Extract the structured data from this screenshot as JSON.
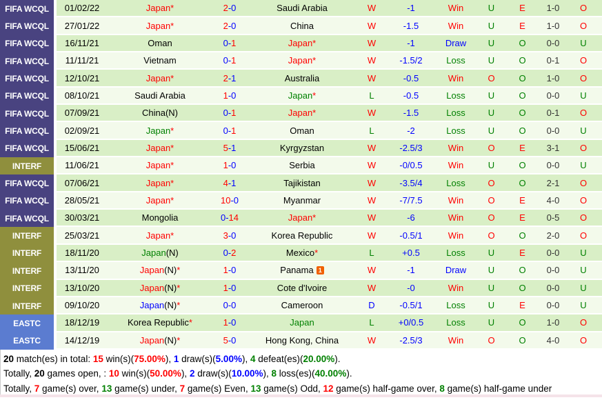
{
  "colors": {
    "result_win": "#ff0000",
    "result_loss": "#008000",
    "result_draw": "#0000ff",
    "handicap_blue": "#0000ff",
    "text_black": "#000000",
    "ht_score": "#333333",
    "row_green": "#d9efc6",
    "row_light": "#f3faeb",
    "badge_fifa": "#494380",
    "badge_interf": "#8f8f3d",
    "badge_eastc": "#5b7cd0",
    "card_orange": "#f06000",
    "divider_pink": "#f5e3e9"
  },
  "table": {
    "tokens": {
      "neutral": "(N)",
      "star": "*",
      "dash": "-",
      "card": "1"
    },
    "rows": [
      {
        "league": "FIFA WCQL",
        "league_key": "fifa",
        "date": "01/02/22",
        "home": {
          "name": "Japan",
          "color": "red",
          "star": true
        },
        "score": {
          "h": "2",
          "a": "0",
          "hc": "red",
          "ac": "blue"
        },
        "away": {
          "name": "Saudi Arabia",
          "color": "black"
        },
        "res": {
          "t": "W",
          "c": "red"
        },
        "handicap": "-1",
        "outcome": {
          "t": "Win",
          "c": "red"
        },
        "ou1": {
          "t": "U",
          "c": "green"
        },
        "eo": {
          "t": "E",
          "c": "red"
        },
        "ht": "1-0",
        "ou2": {
          "t": "O",
          "c": "red"
        }
      },
      {
        "league": "FIFA WCQL",
        "league_key": "fifa",
        "date": "27/01/22",
        "home": {
          "name": "Japan",
          "color": "red",
          "star": true
        },
        "score": {
          "h": "2",
          "a": "0",
          "hc": "red",
          "ac": "blue"
        },
        "away": {
          "name": "China",
          "color": "black"
        },
        "res": {
          "t": "W",
          "c": "red"
        },
        "handicap": "-1.5",
        "outcome": {
          "t": "Win",
          "c": "red"
        },
        "ou1": {
          "t": "U",
          "c": "green"
        },
        "eo": {
          "t": "E",
          "c": "red"
        },
        "ht": "1-0",
        "ou2": {
          "t": "O",
          "c": "red"
        }
      },
      {
        "league": "FIFA WCQL",
        "league_key": "fifa",
        "date": "16/11/21",
        "home": {
          "name": "Oman",
          "color": "black"
        },
        "score": {
          "h": "0",
          "a": "1",
          "hc": "blue",
          "ac": "red"
        },
        "away": {
          "name": "Japan",
          "color": "red",
          "star": true
        },
        "res": {
          "t": "W",
          "c": "red"
        },
        "handicap": "-1",
        "outcome": {
          "t": "Draw",
          "c": "blue"
        },
        "ou1": {
          "t": "U",
          "c": "green"
        },
        "eo": {
          "t": "O",
          "c": "green"
        },
        "ht": "0-0",
        "ou2": {
          "t": "U",
          "c": "green"
        }
      },
      {
        "league": "FIFA WCQL",
        "league_key": "fifa",
        "date": "11/11/21",
        "home": {
          "name": "Vietnam",
          "color": "black"
        },
        "score": {
          "h": "0",
          "a": "1",
          "hc": "blue",
          "ac": "red"
        },
        "away": {
          "name": "Japan",
          "color": "red",
          "star": true
        },
        "res": {
          "t": "W",
          "c": "red"
        },
        "handicap": "-1.5/2",
        "outcome": {
          "t": "Loss",
          "c": "green"
        },
        "ou1": {
          "t": "U",
          "c": "green"
        },
        "eo": {
          "t": "O",
          "c": "green"
        },
        "ht": "0-1",
        "ou2": {
          "t": "O",
          "c": "red"
        }
      },
      {
        "league": "FIFA WCQL",
        "league_key": "fifa",
        "date": "12/10/21",
        "home": {
          "name": "Japan",
          "color": "red",
          "star": true
        },
        "score": {
          "h": "2",
          "a": "1",
          "hc": "red",
          "ac": "blue"
        },
        "away": {
          "name": "Australia",
          "color": "black"
        },
        "res": {
          "t": "W",
          "c": "red"
        },
        "handicap": "-0.5",
        "outcome": {
          "t": "Win",
          "c": "red"
        },
        "ou1": {
          "t": "O",
          "c": "red"
        },
        "eo": {
          "t": "O",
          "c": "green"
        },
        "ht": "1-0",
        "ou2": {
          "t": "O",
          "c": "red"
        }
      },
      {
        "league": "FIFA WCQL",
        "league_key": "fifa",
        "date": "08/10/21",
        "home": {
          "name": "Saudi Arabia",
          "color": "black"
        },
        "score": {
          "h": "1",
          "a": "0",
          "hc": "red",
          "ac": "blue"
        },
        "away": {
          "name": "Japan",
          "color": "green",
          "star": true
        },
        "res": {
          "t": "L",
          "c": "green"
        },
        "handicap": "-0.5",
        "outcome": {
          "t": "Loss",
          "c": "green"
        },
        "ou1": {
          "t": "U",
          "c": "green"
        },
        "eo": {
          "t": "O",
          "c": "green"
        },
        "ht": "0-0",
        "ou2": {
          "t": "U",
          "c": "green"
        }
      },
      {
        "league": "FIFA WCQL",
        "league_key": "fifa",
        "date": "07/09/21",
        "home": {
          "name": "China",
          "color": "black",
          "n": true
        },
        "score": {
          "h": "0",
          "a": "1",
          "hc": "blue",
          "ac": "red"
        },
        "away": {
          "name": "Japan",
          "color": "red",
          "star": true
        },
        "res": {
          "t": "W",
          "c": "red"
        },
        "handicap": "-1.5",
        "outcome": {
          "t": "Loss",
          "c": "green"
        },
        "ou1": {
          "t": "U",
          "c": "green"
        },
        "eo": {
          "t": "O",
          "c": "green"
        },
        "ht": "0-1",
        "ou2": {
          "t": "O",
          "c": "red"
        }
      },
      {
        "league": "FIFA WCQL",
        "league_key": "fifa",
        "date": "02/09/21",
        "home": {
          "name": "Japan",
          "color": "green",
          "star": true
        },
        "score": {
          "h": "0",
          "a": "1",
          "hc": "blue",
          "ac": "red"
        },
        "away": {
          "name": "Oman",
          "color": "black"
        },
        "res": {
          "t": "L",
          "c": "green"
        },
        "handicap": "-2",
        "outcome": {
          "t": "Loss",
          "c": "green"
        },
        "ou1": {
          "t": "U",
          "c": "green"
        },
        "eo": {
          "t": "O",
          "c": "green"
        },
        "ht": "0-0",
        "ou2": {
          "t": "U",
          "c": "green"
        }
      },
      {
        "league": "FIFA WCQL",
        "league_key": "fifa",
        "date": "15/06/21",
        "home": {
          "name": "Japan",
          "color": "red",
          "star": true
        },
        "score": {
          "h": "5",
          "a": "1",
          "hc": "red",
          "ac": "blue"
        },
        "away": {
          "name": "Kyrgyzstan",
          "color": "black"
        },
        "res": {
          "t": "W",
          "c": "red"
        },
        "handicap": "-2.5/3",
        "outcome": {
          "t": "Win",
          "c": "red"
        },
        "ou1": {
          "t": "O",
          "c": "red"
        },
        "eo": {
          "t": "E",
          "c": "red"
        },
        "ht": "3-1",
        "ou2": {
          "t": "O",
          "c": "red"
        }
      },
      {
        "league": "INTERF",
        "league_key": "interf",
        "date": "11/06/21",
        "home": {
          "name": "Japan",
          "color": "red",
          "star": true
        },
        "score": {
          "h": "1",
          "a": "0",
          "hc": "red",
          "ac": "blue"
        },
        "away": {
          "name": "Serbia",
          "color": "black"
        },
        "res": {
          "t": "W",
          "c": "red"
        },
        "handicap": "-0/0.5",
        "outcome": {
          "t": "Win",
          "c": "red"
        },
        "ou1": {
          "t": "U",
          "c": "green"
        },
        "eo": {
          "t": "O",
          "c": "green"
        },
        "ht": "0-0",
        "ou2": {
          "t": "U",
          "c": "green"
        }
      },
      {
        "league": "FIFA WCQL",
        "league_key": "fifa",
        "date": "07/06/21",
        "home": {
          "name": "Japan",
          "color": "red",
          "star": true
        },
        "score": {
          "h": "4",
          "a": "1",
          "hc": "red",
          "ac": "blue"
        },
        "away": {
          "name": "Tajikistan",
          "color": "black"
        },
        "res": {
          "t": "W",
          "c": "red"
        },
        "handicap": "-3.5/4",
        "outcome": {
          "t": "Loss",
          "c": "green"
        },
        "ou1": {
          "t": "O",
          "c": "red"
        },
        "eo": {
          "t": "O",
          "c": "green"
        },
        "ht": "2-1",
        "ou2": {
          "t": "O",
          "c": "red"
        }
      },
      {
        "league": "FIFA WCQL",
        "league_key": "fifa",
        "date": "28/05/21",
        "home": {
          "name": "Japan",
          "color": "red",
          "star": true
        },
        "score": {
          "h": "10",
          "a": "0",
          "hc": "red",
          "ac": "blue"
        },
        "away": {
          "name": "Myanmar",
          "color": "black"
        },
        "res": {
          "t": "W",
          "c": "red"
        },
        "handicap": "-7/7.5",
        "outcome": {
          "t": "Win",
          "c": "red"
        },
        "ou1": {
          "t": "O",
          "c": "red"
        },
        "eo": {
          "t": "E",
          "c": "red"
        },
        "ht": "4-0",
        "ou2": {
          "t": "O",
          "c": "red"
        }
      },
      {
        "league": "FIFA WCQL",
        "league_key": "fifa",
        "date": "30/03/21",
        "home": {
          "name": "Mongolia",
          "color": "black"
        },
        "score": {
          "h": "0",
          "a": "14",
          "hc": "blue",
          "ac": "red"
        },
        "away": {
          "name": "Japan",
          "color": "red",
          "star": true
        },
        "res": {
          "t": "W",
          "c": "red"
        },
        "handicap": "-6",
        "outcome": {
          "t": "Win",
          "c": "red"
        },
        "ou1": {
          "t": "O",
          "c": "red"
        },
        "eo": {
          "t": "E",
          "c": "red"
        },
        "ht": "0-5",
        "ou2": {
          "t": "O",
          "c": "red"
        }
      },
      {
        "league": "INTERF",
        "league_key": "interf",
        "date": "25/03/21",
        "home": {
          "name": "Japan",
          "color": "red",
          "star": true
        },
        "score": {
          "h": "3",
          "a": "0",
          "hc": "red",
          "ac": "blue"
        },
        "away": {
          "name": "Korea Republic",
          "color": "black"
        },
        "res": {
          "t": "W",
          "c": "red"
        },
        "handicap": "-0.5/1",
        "outcome": {
          "t": "Win",
          "c": "red"
        },
        "ou1": {
          "t": "O",
          "c": "red"
        },
        "eo": {
          "t": "O",
          "c": "green"
        },
        "ht": "2-0",
        "ou2": {
          "t": "O",
          "c": "red"
        }
      },
      {
        "league": "INTERF",
        "league_key": "interf",
        "date": "18/11/20",
        "home": {
          "name": "Japan",
          "color": "green",
          "n": true
        },
        "score": {
          "h": "0",
          "a": "2",
          "hc": "blue",
          "ac": "red"
        },
        "away": {
          "name": "Mexico",
          "color": "black",
          "star": true
        },
        "res": {
          "t": "L",
          "c": "green"
        },
        "handicap": "+0.5",
        "outcome": {
          "t": "Loss",
          "c": "green"
        },
        "ou1": {
          "t": "U",
          "c": "green"
        },
        "eo": {
          "t": "E",
          "c": "red"
        },
        "ht": "0-0",
        "ou2": {
          "t": "U",
          "c": "green"
        }
      },
      {
        "league": "INTERF",
        "league_key": "interf",
        "date": "13/11/20",
        "home": {
          "name": "Japan",
          "color": "red",
          "n": true,
          "star": true
        },
        "score": {
          "h": "1",
          "a": "0",
          "hc": "red",
          "ac": "blue"
        },
        "away": {
          "name": "Panama",
          "color": "black",
          "card": true
        },
        "res": {
          "t": "W",
          "c": "red"
        },
        "handicap": "-1",
        "outcome": {
          "t": "Draw",
          "c": "blue"
        },
        "ou1": {
          "t": "U",
          "c": "green"
        },
        "eo": {
          "t": "O",
          "c": "green"
        },
        "ht": "0-0",
        "ou2": {
          "t": "U",
          "c": "green"
        }
      },
      {
        "league": "INTERF",
        "league_key": "interf",
        "date": "13/10/20",
        "home": {
          "name": "Japan",
          "color": "red",
          "n": true,
          "star": true
        },
        "score": {
          "h": "1",
          "a": "0",
          "hc": "red",
          "ac": "blue"
        },
        "away": {
          "name": "Cote d'Ivoire",
          "color": "black"
        },
        "res": {
          "t": "W",
          "c": "red"
        },
        "handicap": "-0",
        "outcome": {
          "t": "Win",
          "c": "red"
        },
        "ou1": {
          "t": "U",
          "c": "green"
        },
        "eo": {
          "t": "O",
          "c": "green"
        },
        "ht": "0-0",
        "ou2": {
          "t": "U",
          "c": "green"
        }
      },
      {
        "league": "INTERF",
        "league_key": "interf",
        "date": "09/10/20",
        "home": {
          "name": "Japan",
          "color": "blue",
          "n": true,
          "star": true
        },
        "score": {
          "h": "0",
          "a": "0",
          "hc": "blue",
          "ac": "blue"
        },
        "away": {
          "name": "Cameroon",
          "color": "black"
        },
        "res": {
          "t": "D",
          "c": "blue"
        },
        "handicap": "-0.5/1",
        "outcome": {
          "t": "Loss",
          "c": "green"
        },
        "ou1": {
          "t": "U",
          "c": "green"
        },
        "eo": {
          "t": "E",
          "c": "red"
        },
        "ht": "0-0",
        "ou2": {
          "t": "U",
          "c": "green"
        }
      },
      {
        "league": "EASTC",
        "league_key": "eastc",
        "date": "18/12/19",
        "home": {
          "name": "Korea Republic",
          "color": "black",
          "star": true
        },
        "score": {
          "h": "1",
          "a": "0",
          "hc": "red",
          "ac": "blue"
        },
        "away": {
          "name": "Japan",
          "color": "green"
        },
        "res": {
          "t": "L",
          "c": "green"
        },
        "handicap": "+0/0.5",
        "outcome": {
          "t": "Loss",
          "c": "green"
        },
        "ou1": {
          "t": "U",
          "c": "green"
        },
        "eo": {
          "t": "O",
          "c": "green"
        },
        "ht": "1-0",
        "ou2": {
          "t": "O",
          "c": "red"
        }
      },
      {
        "league": "EASTC",
        "league_key": "eastc",
        "date": "14/12/19",
        "home": {
          "name": "Japan",
          "color": "red",
          "n": true,
          "star": true
        },
        "score": {
          "h": "5",
          "a": "0",
          "hc": "red",
          "ac": "blue"
        },
        "away": {
          "name": "Hong Kong, China",
          "color": "black"
        },
        "res": {
          "t": "W",
          "c": "red"
        },
        "handicap": "-2.5/3",
        "outcome": {
          "t": "Win",
          "c": "red"
        },
        "ou1": {
          "t": "O",
          "c": "red"
        },
        "eo": {
          "t": "O",
          "c": "green"
        },
        "ht": "4-0",
        "ou2": {
          "t": "O",
          "c": "red"
        }
      }
    ]
  },
  "summary": {
    "lines": [
      [
        {
          "t": "20",
          "b": 1
        },
        {
          "t": " match(es) in total: "
        },
        {
          "t": "15",
          "c": "red",
          "b": 1
        },
        {
          "t": " win(s)("
        },
        {
          "t": "75.00%",
          "c": "red",
          "b": 1
        },
        {
          "t": "), "
        },
        {
          "t": "1",
          "c": "blue",
          "b": 1
        },
        {
          "t": " draw(s)("
        },
        {
          "t": "5.00%",
          "c": "blue",
          "b": 1
        },
        {
          "t": "), "
        },
        {
          "t": "4",
          "c": "green",
          "b": 1
        },
        {
          "t": " defeat(es)("
        },
        {
          "t": "20.00%",
          "c": "green",
          "b": 1
        },
        {
          "t": ")."
        }
      ],
      [
        {
          "t": "Totally, "
        },
        {
          "t": "20",
          "b": 1
        },
        {
          "t": " games open, : "
        },
        {
          "t": "10",
          "c": "red",
          "b": 1
        },
        {
          "t": " win(s)("
        },
        {
          "t": "50.00%",
          "c": "red",
          "b": 1
        },
        {
          "t": "), "
        },
        {
          "t": "2",
          "c": "blue",
          "b": 1
        },
        {
          "t": " draw(s)("
        },
        {
          "t": "10.00%",
          "c": "blue",
          "b": 1
        },
        {
          "t": "), "
        },
        {
          "t": "8",
          "c": "green",
          "b": 1
        },
        {
          "t": " loss(es)("
        },
        {
          "t": "40.00%",
          "c": "green",
          "b": 1
        },
        {
          "t": ")."
        }
      ],
      [
        {
          "t": "Totally, "
        },
        {
          "t": "7",
          "c": "red",
          "b": 1
        },
        {
          "t": " game(s) over, "
        },
        {
          "t": "13",
          "c": "green",
          "b": 1
        },
        {
          "t": " game(s) under, "
        },
        {
          "t": "7",
          "c": "red",
          "b": 1
        },
        {
          "t": " game(s) Even, "
        },
        {
          "t": "13",
          "c": "green",
          "b": 1
        },
        {
          "t": " game(s) Odd, "
        },
        {
          "t": "12",
          "c": "red",
          "b": 1
        },
        {
          "t": " game(s) half-game over, "
        },
        {
          "t": "8",
          "c": "green",
          "b": 1
        },
        {
          "t": " game(s) half-game under"
        }
      ]
    ]
  }
}
